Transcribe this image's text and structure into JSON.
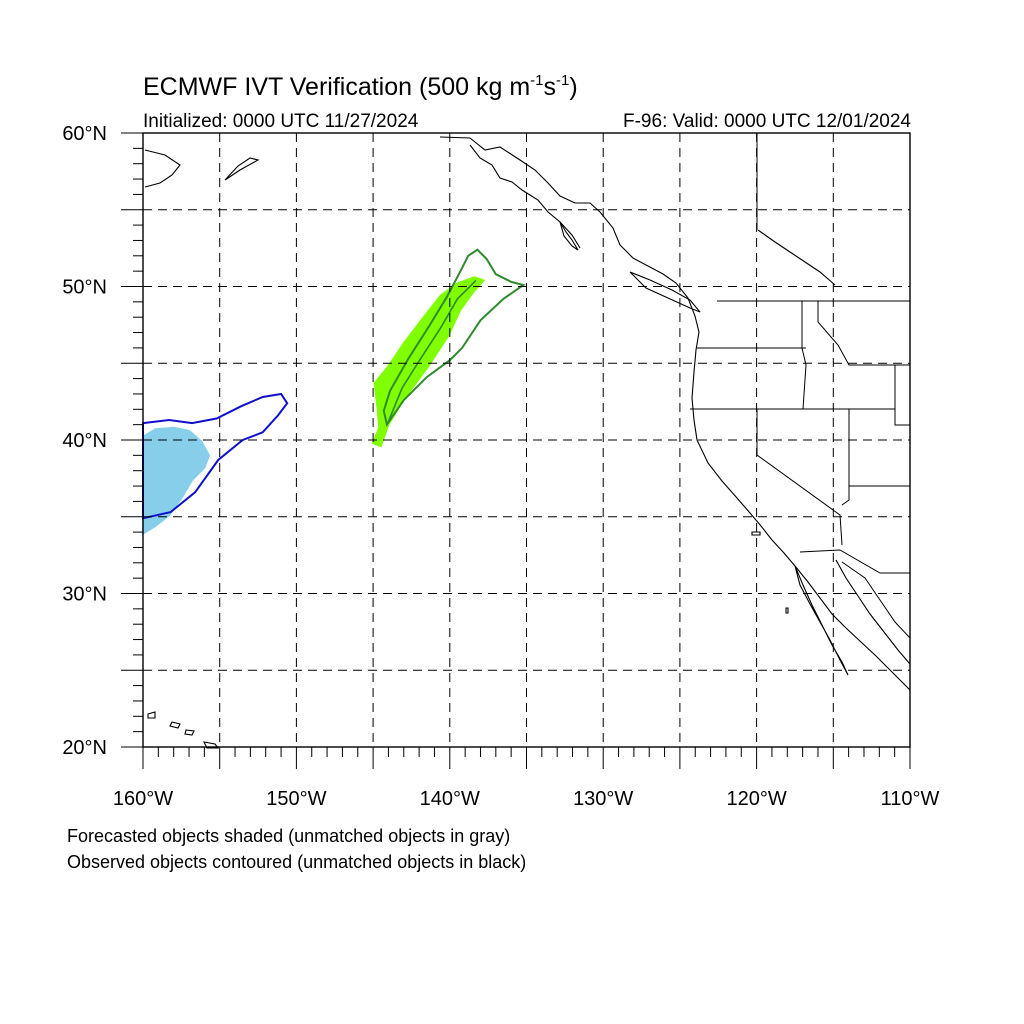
{
  "header": {
    "title_prefix": "ECMWF IVT Verification (500 kg m",
    "title_exp1": "-1",
    "title_mid": "s",
    "title_exp2": "-1",
    "title_suffix": ")",
    "initialized": "Initialized: 0000 UTC 11/27/2024",
    "valid": "F-96: Valid: 0000 UTC 12/01/2024"
  },
  "map": {
    "projection": "cylindrical-equidistant",
    "lon_range": [
      -160,
      -110
    ],
    "lat_range": [
      20,
      60
    ],
    "grid": "dashed every 5 degrees",
    "lat_labels": [
      {
        "lat": 60,
        "text": "60°N"
      },
      {
        "lat": 50,
        "text": "50°N"
      },
      {
        "lat": 40,
        "text": "40°N"
      },
      {
        "lat": 30,
        "text": "30°N"
      },
      {
        "lat": 20,
        "text": "20°N"
      }
    ],
    "lon_labels": [
      {
        "lon": -160,
        "text": "160°W"
      },
      {
        "lon": -150,
        "text": "150°W"
      },
      {
        "lon": -140,
        "text": "140°W"
      },
      {
        "lon": -130,
        "text": "130°W"
      },
      {
        "lon": -120,
        "text": "120°W"
      },
      {
        "lon": -110,
        "text": "110°W"
      }
    ]
  },
  "objects": [
    {
      "kind": "forecast-shaded",
      "color": "#7FFF00",
      "points": [
        [
          -145.0,
          39.8
        ],
        [
          -144.5,
          39.6
        ],
        [
          -144.0,
          41.0
        ],
        [
          -142.9,
          42.8
        ],
        [
          -141.4,
          44.8
        ],
        [
          -140.1,
          46.8
        ],
        [
          -139.3,
          48.5
        ],
        [
          -138.5,
          49.6
        ],
        [
          -137.8,
          50.4
        ],
        [
          -138.4,
          50.6
        ],
        [
          -139.5,
          50.2
        ],
        [
          -140.6,
          49.4
        ],
        [
          -141.7,
          48.0
        ],
        [
          -143.0,
          46.3
        ],
        [
          -144.0,
          44.8
        ],
        [
          -144.9,
          43.7
        ],
        [
          -144.7,
          42.0
        ],
        [
          -144.6,
          40.8
        ]
      ]
    },
    {
      "kind": "observed-contour",
      "color": "#2E8B2E",
      "points": [
        [
          -144.1,
          41.0
        ],
        [
          -143.0,
          42.6
        ],
        [
          -141.5,
          44.1
        ],
        [
          -140.0,
          45.2
        ],
        [
          -139.2,
          46.0
        ],
        [
          -138.0,
          47.8
        ],
        [
          -136.5,
          49.2
        ],
        [
          -135.2,
          50.1
        ],
        [
          -136.0,
          50.3
        ],
        [
          -137.0,
          50.8
        ],
        [
          -137.6,
          51.8
        ],
        [
          -138.2,
          52.4
        ],
        [
          -138.8,
          52.0
        ],
        [
          -139.3,
          51.0
        ],
        [
          -140.2,
          49.3
        ],
        [
          -141.3,
          47.5
        ],
        [
          -142.7,
          45.3
        ],
        [
          -143.9,
          43.2
        ],
        [
          -144.3,
          41.9
        ]
      ],
      "spine": [
        [
          -144.0,
          41.2
        ],
        [
          -143.1,
          43.4
        ],
        [
          -141.9,
          45.3
        ],
        [
          -140.6,
          47.3
        ],
        [
          -139.5,
          49.2
        ],
        [
          -138.3,
          50.4
        ]
      ]
    },
    {
      "kind": "forecast-shaded",
      "color": "#87CEEB",
      "points": [
        [
          -160.0,
          40.2
        ],
        [
          -159.2,
          40.7
        ],
        [
          -158.0,
          40.8
        ],
        [
          -157.0,
          40.6
        ],
        [
          -156.2,
          39.9
        ],
        [
          -155.7,
          39.0
        ],
        [
          -156.0,
          38.2
        ],
        [
          -156.8,
          37.4
        ],
        [
          -157.5,
          36.2
        ],
        [
          -158.3,
          35.1
        ],
        [
          -159.2,
          34.4
        ],
        [
          -160.0,
          33.9
        ]
      ]
    },
    {
      "kind": "observed-contour",
      "color": "#1010CC",
      "points": [
        [
          -160.0,
          41.1
        ],
        [
          -158.3,
          41.3
        ],
        [
          -156.8,
          41.1
        ],
        [
          -155.2,
          41.4
        ],
        [
          -153.6,
          42.2
        ],
        [
          -152.2,
          42.8
        ],
        [
          -151.0,
          43.0
        ],
        [
          -150.6,
          42.4
        ],
        [
          -151.2,
          41.6
        ],
        [
          -152.2,
          40.5
        ],
        [
          -153.5,
          40.0
        ],
        [
          -155.1,
          38.7
        ],
        [
          -156.6,
          36.6
        ],
        [
          -158.2,
          35.3
        ],
        [
          -160.0,
          34.9
        ]
      ]
    }
  ],
  "legend_notes": [
    "Forecasted objects shaded (unmatched objects in gray)",
    "Observed objects contoured (unmatched objects in black)"
  ]
}
